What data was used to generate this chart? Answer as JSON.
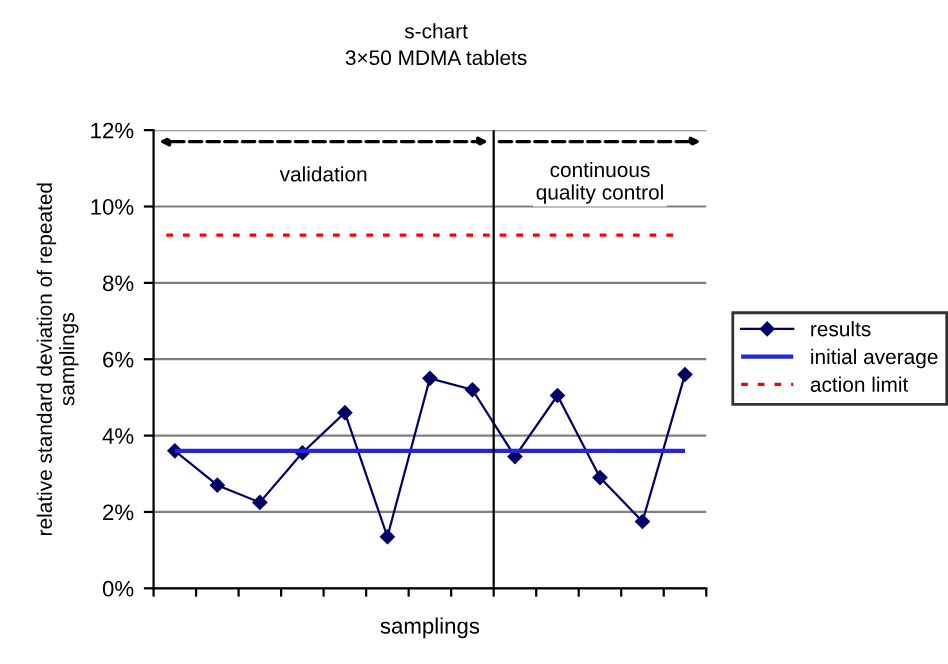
{
  "chart_data": {
    "type": "line",
    "title": "s-chart",
    "subtitle": "3×50 MDMA tablets",
    "xlabel": "samplings",
    "ylabel": "relative standard deviation of repeated samplings",
    "categories": [
      null,
      null,
      null,
      null,
      null,
      null,
      null,
      null,
      null,
      null,
      null,
      null,
      null
    ],
    "series": [
      {
        "name": "results",
        "color": "#000066",
        "values": [
          3.6,
          2.7,
          2.25,
          3.55,
          4.6,
          1.35,
          5.5,
          5.2,
          3.45,
          5.05,
          2.9,
          1.75,
          5.6
        ]
      }
    ],
    "ref_lines": [
      {
        "axis": "y",
        "value": 3.6,
        "label": "initial average",
        "color": "#2626d9",
        "line_style": "solid"
      },
      {
        "axis": "y",
        "value": 9.25,
        "label": "action limit",
        "color": "#ff0000",
        "line_style": "dotted"
      }
    ],
    "annotations": [
      "validation",
      "continuous quality control"
    ],
    "ylim": [
      0,
      12
    ],
    "yticks": [
      {
        "value": 0,
        "label": "0%"
      },
      {
        "value": 2,
        "label": "2%"
      },
      {
        "value": 4,
        "label": "4%"
      },
      {
        "value": 6,
        "label": "6%"
      },
      {
        "value": 8,
        "label": "8%"
      },
      {
        "value": 10,
        "label": "10%"
      },
      {
        "value": 12,
        "label": "12%"
      }
    ],
    "grid": "y",
    "legend": "right",
    "marker": "diamond",
    "line_style": "solid"
  }
}
